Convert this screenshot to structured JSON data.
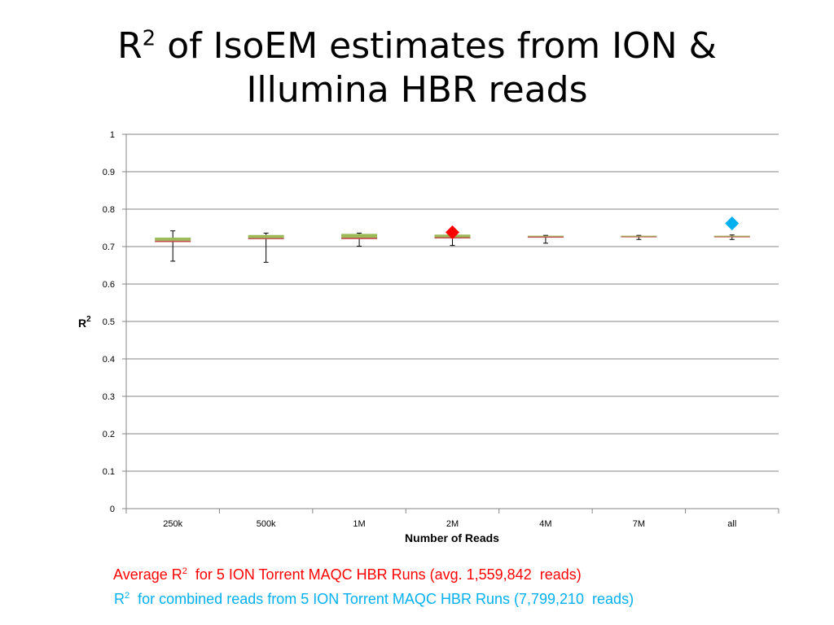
{
  "title": {
    "prefix": "R",
    "sup": "2",
    "line1_rest": " of IsoEM estimates from ION &",
    "line2": "Illumina HBR reads"
  },
  "notes": [
    {
      "prefix": "Average R",
      "sup": "2",
      "rest": "  for 5 ION Torrent MAQC HBR Runs (avg. 1,559,842  reads)",
      "color": "#ff0000"
    },
    {
      "prefix": "R",
      "sup": "2",
      "rest": "  for combined reads from 5 ION Torrent MAQC HBR Runs (7,799,210  reads)",
      "color": "#00b0f0"
    }
  ],
  "chart_data": {
    "type": "box",
    "title": "",
    "xlabel": "Number of Reads",
    "ylabel": "R",
    "ylabel_sup": "2",
    "ylim": [
      0,
      1
    ],
    "yticks": [
      "0",
      "0.1",
      "0.2",
      "0.3",
      "0.4",
      "0.5",
      "0.6",
      "0.7",
      "0.8",
      "0.9",
      "1"
    ],
    "grid": true,
    "categories": [
      "250k",
      "500k",
      "1M",
      "2M",
      "4M",
      "7M",
      "all"
    ],
    "boxes": [
      {
        "min": 0.661,
        "q1": 0.712,
        "median": 0.716,
        "q3": 0.724,
        "max": 0.742
      },
      {
        "min": 0.658,
        "q1": 0.72,
        "median": 0.723,
        "q3": 0.731,
        "max": 0.736
      },
      {
        "min": 0.701,
        "q1": 0.72,
        "median": 0.724,
        "q3": 0.734,
        "max": 0.736
      },
      {
        "min": 0.703,
        "q1": 0.722,
        "median": 0.725,
        "q3": 0.732,
        "max": 0.733
      },
      {
        "min": 0.709,
        "q1": 0.725,
        "median": 0.727,
        "q3": 0.729,
        "max": 0.73
      },
      {
        "min": 0.719,
        "q1": 0.727,
        "median": 0.728,
        "q3": 0.729,
        "max": 0.73
      },
      {
        "min": 0.719,
        "q1": 0.728,
        "median": 0.728,
        "q3": 0.729,
        "max": 0.731
      }
    ],
    "box_colors": {
      "upper": "#9bbb59",
      "median": "#c0504d",
      "whisker": "#000000"
    },
    "markers": [
      {
        "x": 3.5,
        "y": 0.738,
        "color": "#ff0000",
        "shape": "diamond"
      },
      {
        "x": 6.5,
        "y": 0.762,
        "color": "#00b0f0",
        "shape": "diamond"
      }
    ]
  }
}
